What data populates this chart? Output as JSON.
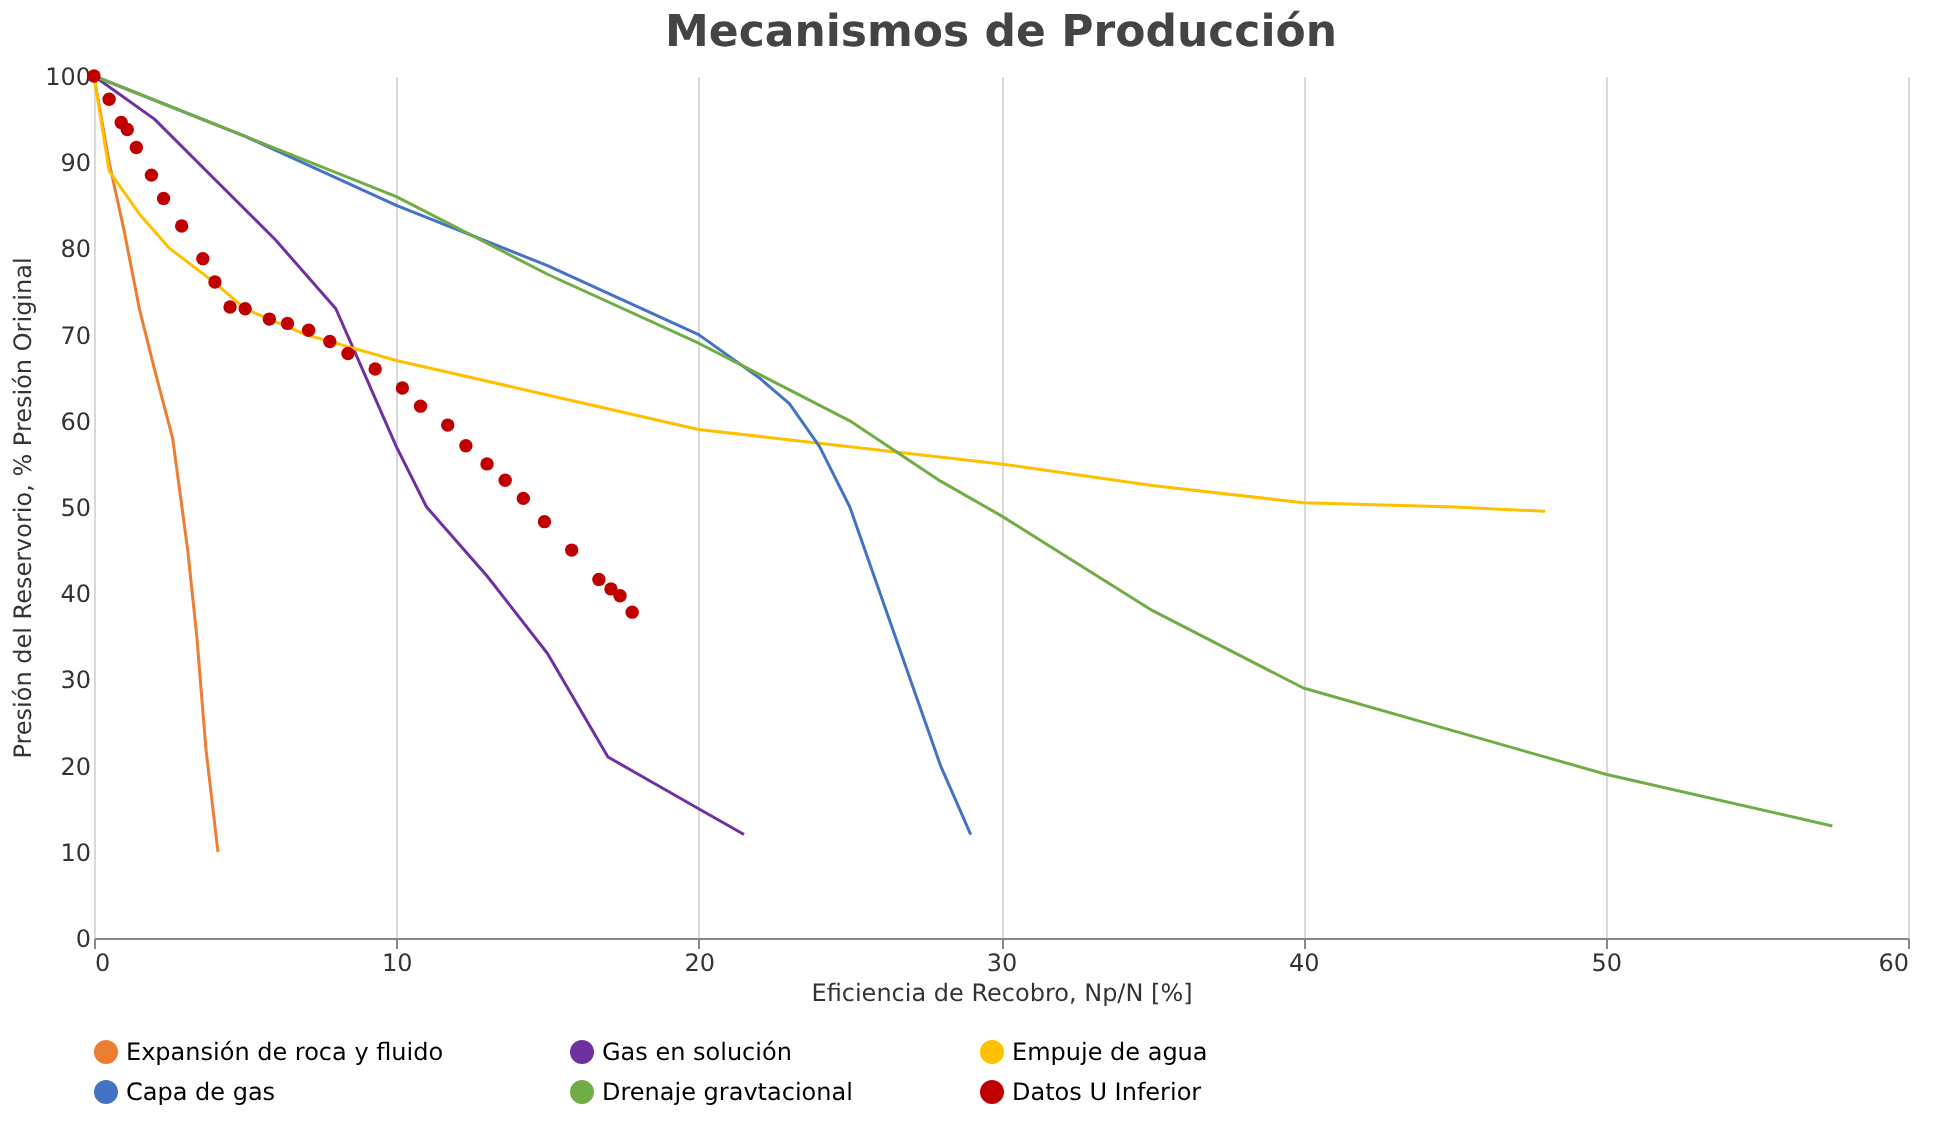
{
  "chart_data": {
    "type": "line",
    "title": "Mecanismos de Producción",
    "xlabel": "Eficiencia de Recobro, Np/N [%]",
    "ylabel": "Presión del Reservorio, % Presión Original",
    "xlim": [
      0,
      60
    ],
    "xticks": [
      0,
      10,
      20,
      30,
      40,
      50,
      60
    ],
    "ylim": [
      0,
      100
    ],
    "yticks": [
      0,
      10,
      20,
      30,
      40,
      50,
      60,
      70,
      80,
      90,
      100
    ],
    "grid": "x",
    "legend": "bottom",
    "line_style": "solid",
    "series": [
      {
        "name": "Expansión de roca y fluido",
        "color": "#ed7d31",
        "x": [
          0,
          0.5,
          1,
          1.5,
          2,
          2.6,
          3.1,
          3.4,
          3.7,
          4.1
        ],
        "values": [
          100,
          90,
          82,
          73,
          66,
          58,
          45,
          35,
          22,
          10
        ]
      },
      {
        "name": "Gas en solución",
        "color": "#7030a0",
        "x": [
          0,
          2,
          4,
          6,
          8,
          9,
          10,
          11,
          13,
          15,
          16,
          17,
          18,
          20,
          21.5
        ],
        "values": [
          100,
          95,
          88,
          81,
          73,
          65,
          57,
          50,
          42,
          33,
          27,
          21,
          19,
          15,
          12
        ]
      },
      {
        "name": "Empuje de agua",
        "color": "#ffc000",
        "x": [
          0,
          0.5,
          1.5,
          2.5,
          4,
          5,
          7,
          10,
          15,
          20,
          25,
          30,
          35,
          40,
          45,
          48
        ],
        "values": [
          100,
          89,
          84,
          80,
          76,
          73,
          70,
          67,
          63,
          59,
          57,
          55,
          52.5,
          50.5,
          50,
          49.5
        ]
      },
      {
        "name": "Capa de gas",
        "color": "#4472c4",
        "x": [
          0,
          5,
          10,
          15,
          20,
          22,
          23,
          24,
          25,
          26,
          27,
          28,
          29
        ],
        "values": [
          100,
          93,
          85,
          78,
          70,
          65,
          62,
          57,
          50,
          40,
          30,
          20,
          12
        ]
      },
      {
        "name": "Drenaje gravtacional",
        "color": "#70ad47",
        "x": [
          0,
          10,
          15,
          20,
          25,
          28,
          30,
          35,
          40,
          45,
          50,
          57.5
        ],
        "values": [
          100,
          86,
          77,
          69,
          60,
          53,
          49,
          38,
          29,
          24,
          19,
          13
        ]
      },
      {
        "name": "Datos U Inferior",
        "type": "scatter",
        "marker": "circle",
        "color": "#c00000",
        "x": [
          0,
          0.5,
          0.9,
          1.1,
          1.4,
          1.9,
          2.3,
          2.9,
          3.6,
          4.0,
          4.5,
          5,
          5.8,
          6.4,
          7.1,
          7.8,
          8.4,
          9.3,
          10.2,
          10.8,
          11.7,
          12.3,
          13,
          13.6,
          14.2,
          14.9,
          15.8,
          16.7,
          17.1,
          17.4,
          17.8
        ],
        "values": [
          100,
          97.3,
          94.6,
          93.8,
          91.7,
          88.5,
          85.8,
          82.6,
          78.8,
          76.1,
          73.2,
          73,
          71.8,
          71.3,
          70.5,
          69.2,
          67.8,
          66,
          63.8,
          61.7,
          59.5,
          57.1,
          55,
          53.1,
          51,
          48.3,
          45,
          41.6,
          40.5,
          39.7,
          37.8
        ]
      }
    ]
  }
}
